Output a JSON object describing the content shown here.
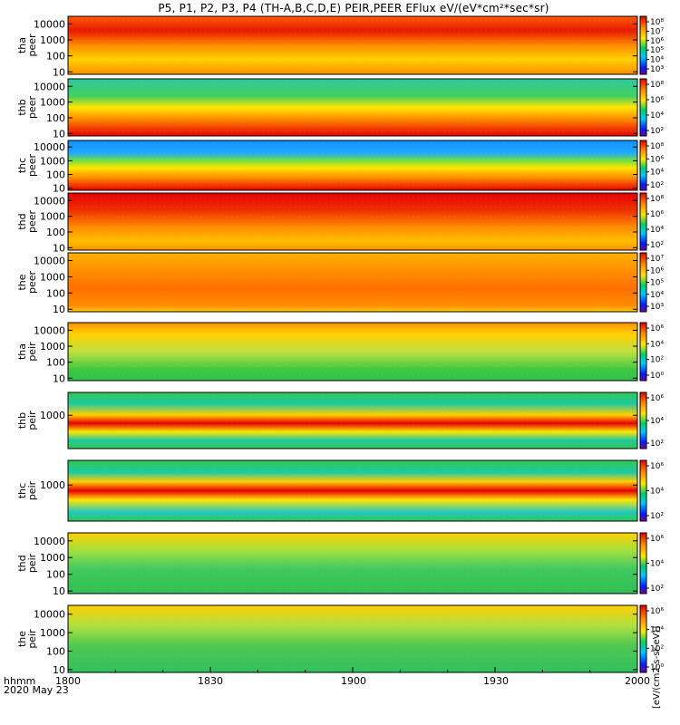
{
  "title": "P5, P1, P2, P3, P4 (TH-A,B,C,D,E) PEIR,PEER EFlux eV/(eV*cm²*sec*sr)",
  "time_axis": {
    "label_line1": "hhmm",
    "label_line2": "2020 May 23",
    "ticks": [
      "1800",
      "1830",
      "1900",
      "1930",
      "2000"
    ],
    "range": [
      "18:00",
      "20:00"
    ]
  },
  "colorbar_unit": "[eV/(cm2-s-sr-eV)]",
  "colors": {
    "red": "#e60000",
    "orange": "#ff8c00",
    "yellow": "#ffe600",
    "green": "#2fc832",
    "cyan": "#00c8c8",
    "blue": "#0050ff",
    "purple": "#7000a0",
    "black": "#000000"
  },
  "chart_data": [
    {
      "type": "heatmap",
      "panel": "tha-peer",
      "label_line1": "tha",
      "label_line2": "peer",
      "yscale": "log",
      "ylim": [
        7,
        30000
      ],
      "yticks": [
        "10000",
        "1000",
        "100",
        "10"
      ],
      "colorbar_scale": "log",
      "colorbar_ticks": [
        "10⁸",
        "10⁷",
        "10⁶",
        "10⁵",
        "10⁴",
        "10³"
      ]
    },
    {
      "type": "heatmap",
      "panel": "thb-peer",
      "label_line1": "thb",
      "label_line2": "peer",
      "yscale": "log",
      "ylim": [
        7,
        30000
      ],
      "yticks": [
        "10000",
        "1000",
        "100",
        "10"
      ],
      "colorbar_scale": "log",
      "colorbar_ticks": [
        "10⁸",
        "10⁶",
        "10⁴",
        "10²"
      ]
    },
    {
      "type": "heatmap",
      "panel": "thc-peer",
      "label_line1": "thc",
      "label_line2": "peer",
      "yscale": "log",
      "ylim": [
        7,
        30000
      ],
      "yticks": [
        "10000",
        "1000",
        "100",
        "10"
      ],
      "colorbar_scale": "log",
      "colorbar_ticks": [
        "10⁸",
        "10⁶",
        "10⁴",
        "10²"
      ]
    },
    {
      "type": "heatmap",
      "panel": "thd-peer",
      "label_line1": "thd",
      "label_line2": "peer",
      "yscale": "log",
      "ylim": [
        7,
        30000
      ],
      "yticks": [
        "10000",
        "1000",
        "100",
        "10"
      ],
      "colorbar_scale": "log",
      "colorbar_ticks": [
        "10⁸",
        "10⁶",
        "10⁴",
        "10²"
      ]
    },
    {
      "type": "heatmap",
      "panel": "the-peer",
      "label_line1": "the",
      "label_line2": "peer",
      "yscale": "log",
      "ylim": [
        7,
        30000
      ],
      "yticks": [
        "10000",
        "1000",
        "100",
        "10"
      ],
      "colorbar_scale": "log",
      "colorbar_ticks": [
        "10⁷",
        "10⁶",
        "10⁵",
        "10⁴",
        "10³"
      ]
    },
    {
      "type": "heatmap",
      "panel": "tha-peir",
      "label_line1": "tha",
      "label_line2": "peir",
      "yscale": "log",
      "ylim": [
        7,
        30000
      ],
      "yticks": [
        "10000",
        "1000",
        "100",
        "10"
      ],
      "colorbar_scale": "log",
      "colorbar_ticks": [
        "10⁶",
        "10⁴",
        "10²",
        "10⁰"
      ]
    },
    {
      "type": "heatmap",
      "panel": "thb-peir",
      "label_line1": "thb",
      "label_line2": "peir",
      "yscale": "log",
      "ylim": [
        7,
        30000
      ],
      "yticks": [
        "1000"
      ],
      "colorbar_scale": "log",
      "colorbar_ticks": [
        "10⁶",
        "10⁴",
        "10²"
      ]
    },
    {
      "type": "heatmap",
      "panel": "thc-peir",
      "label_line1": "thc",
      "label_line2": "peir",
      "yscale": "log",
      "ylim": [
        7,
        30000
      ],
      "yticks": [
        "1000"
      ],
      "colorbar_scale": "log",
      "colorbar_ticks": [
        "10⁶",
        "10⁴",
        "10²"
      ]
    },
    {
      "type": "heatmap",
      "panel": "thd-peir",
      "label_line1": "thd",
      "label_line2": "peir",
      "yscale": "log",
      "ylim": [
        7,
        30000
      ],
      "yticks": [
        "10000",
        "1000",
        "100",
        "10"
      ],
      "colorbar_scale": "log",
      "colorbar_ticks": [
        "10⁶",
        "10⁴",
        "10²"
      ]
    },
    {
      "type": "heatmap",
      "panel": "the-peir",
      "label_line1": "the",
      "label_line2": "peir",
      "yscale": "log",
      "ylim": [
        7,
        30000
      ],
      "yticks": [
        "10000",
        "1000",
        "100",
        "10"
      ],
      "colorbar_scale": "log",
      "colorbar_ticks": [
        "10⁶",
        "10⁴",
        "10²",
        "10⁰"
      ]
    }
  ]
}
